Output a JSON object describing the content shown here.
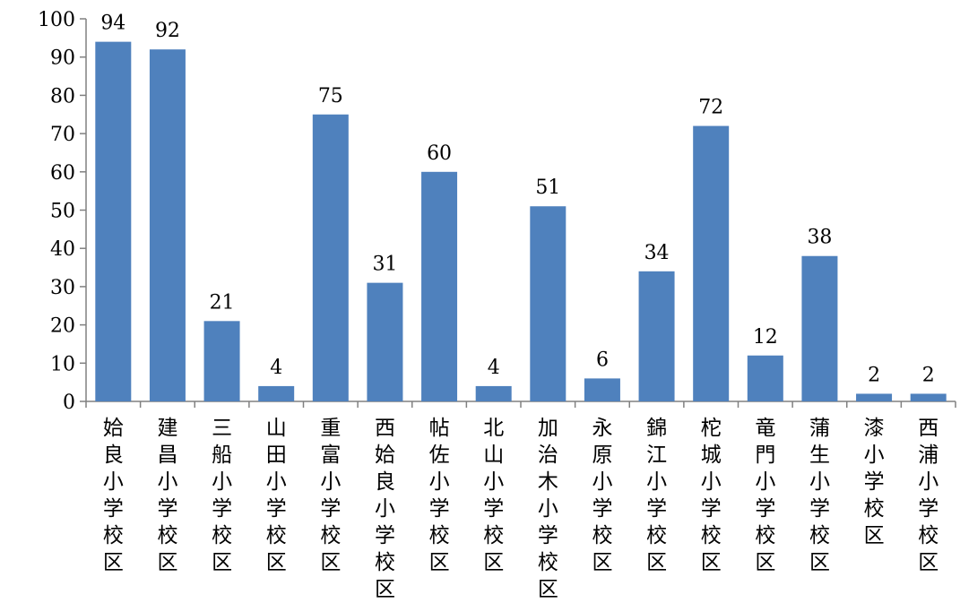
{
  "chart_data": {
    "type": "bar",
    "title": "",
    "xlabel": "",
    "ylabel": "",
    "ylim": [
      0,
      100
    ],
    "yticks": [
      0,
      10,
      20,
      30,
      40,
      50,
      60,
      70,
      80,
      90,
      100
    ],
    "grid": false,
    "legend": "none",
    "bar_color": "#4F81BD",
    "categories": [
      "姶良小学校区",
      "建昌小学校区",
      "三船小学校区",
      "山田小学校区",
      "重富小学校区",
      "西姶良小学校区",
      "帖佐小学校区",
      "北山小学校区",
      "加治木小学校区",
      "永原小学校区",
      "錦江小学校区",
      "柁城小学校区",
      "竜門小学校区",
      "蒲生小学校区",
      "漆小学校区",
      "西浦小学校区"
    ],
    "values": [
      94,
      92,
      21,
      4,
      75,
      31,
      60,
      4,
      51,
      6,
      34,
      72,
      12,
      38,
      2,
      2
    ],
    "data_labels": [
      "94",
      "92",
      "21",
      "4",
      "75",
      "31",
      "60",
      "4",
      "51",
      "6",
      "34",
      "72",
      "12",
      "38",
      "2",
      "2"
    ]
  }
}
